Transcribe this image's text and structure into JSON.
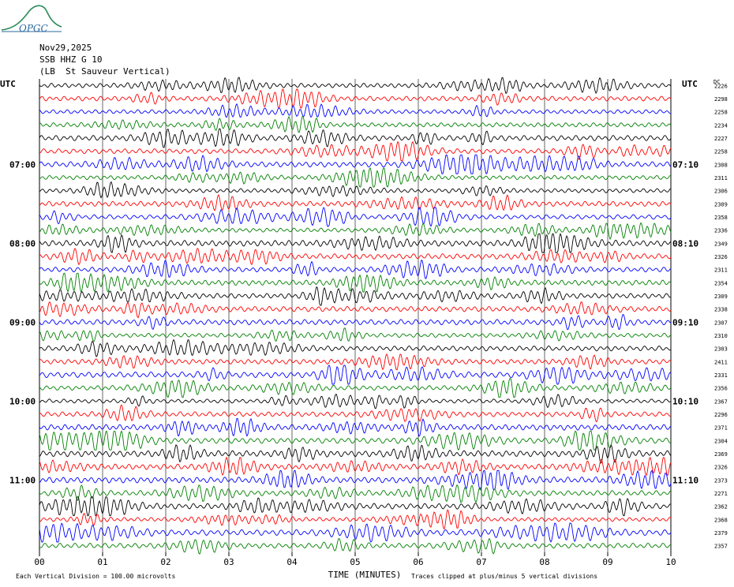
{
  "header": {
    "date": "Nov29,2025",
    "station_line": "SSB HHZ G 10",
    "location_line": "(LB  St Sauveur Vertical)",
    "logo_text": "OPGC"
  },
  "labels": {
    "utc_left": "UTC",
    "utc_right": "UTC",
    "dc": "DC",
    "time_axis": "TIME (MINUTES)",
    "division_note": "Each Vertical Division =  100.00 microvolts",
    "clip_note": "Traces clipped at plus/minus 5 vertical divisions"
  },
  "chart_data": {
    "type": "line",
    "xlabel": "TIME (MINUTES)",
    "xlim": [
      0,
      10
    ],
    "x_ticks": [
      "00",
      "01",
      "02",
      "03",
      "04",
      "05",
      "06",
      "07",
      "08",
      "09",
      "10"
    ],
    "grid": true,
    "trace_colors": [
      "#000000",
      "#ff0000",
      "#0000ff",
      "#008000"
    ],
    "left_time_labels": [
      {
        "row": 6,
        "label": "07:00"
      },
      {
        "row": 12,
        "label": "08:00"
      },
      {
        "row": 18,
        "label": "09:00"
      },
      {
        "row": 24,
        "label": "10:00"
      },
      {
        "row": 30,
        "label": "11:00"
      }
    ],
    "right_time_labels": [
      {
        "row": 6,
        "label": "07:10"
      },
      {
        "row": 12,
        "label": "08:10"
      },
      {
        "row": 18,
        "label": "09:10"
      },
      {
        "row": 24,
        "label": "10:10"
      },
      {
        "row": 30,
        "label": "11:10"
      }
    ],
    "dc_offsets": [
      2226,
      2298,
      2258,
      2234,
      2227,
      2258,
      2308,
      2311,
      2306,
      2309,
      2358,
      2336,
      2349,
      2326,
      2311,
      2354,
      2309,
      2338,
      2307,
      2310,
      2303,
      2411,
      2331,
      2356,
      2367,
      2296,
      2371,
      2304,
      2369,
      2326,
      2373,
      2271,
      2362,
      2368,
      2379,
      2357
    ]
  }
}
